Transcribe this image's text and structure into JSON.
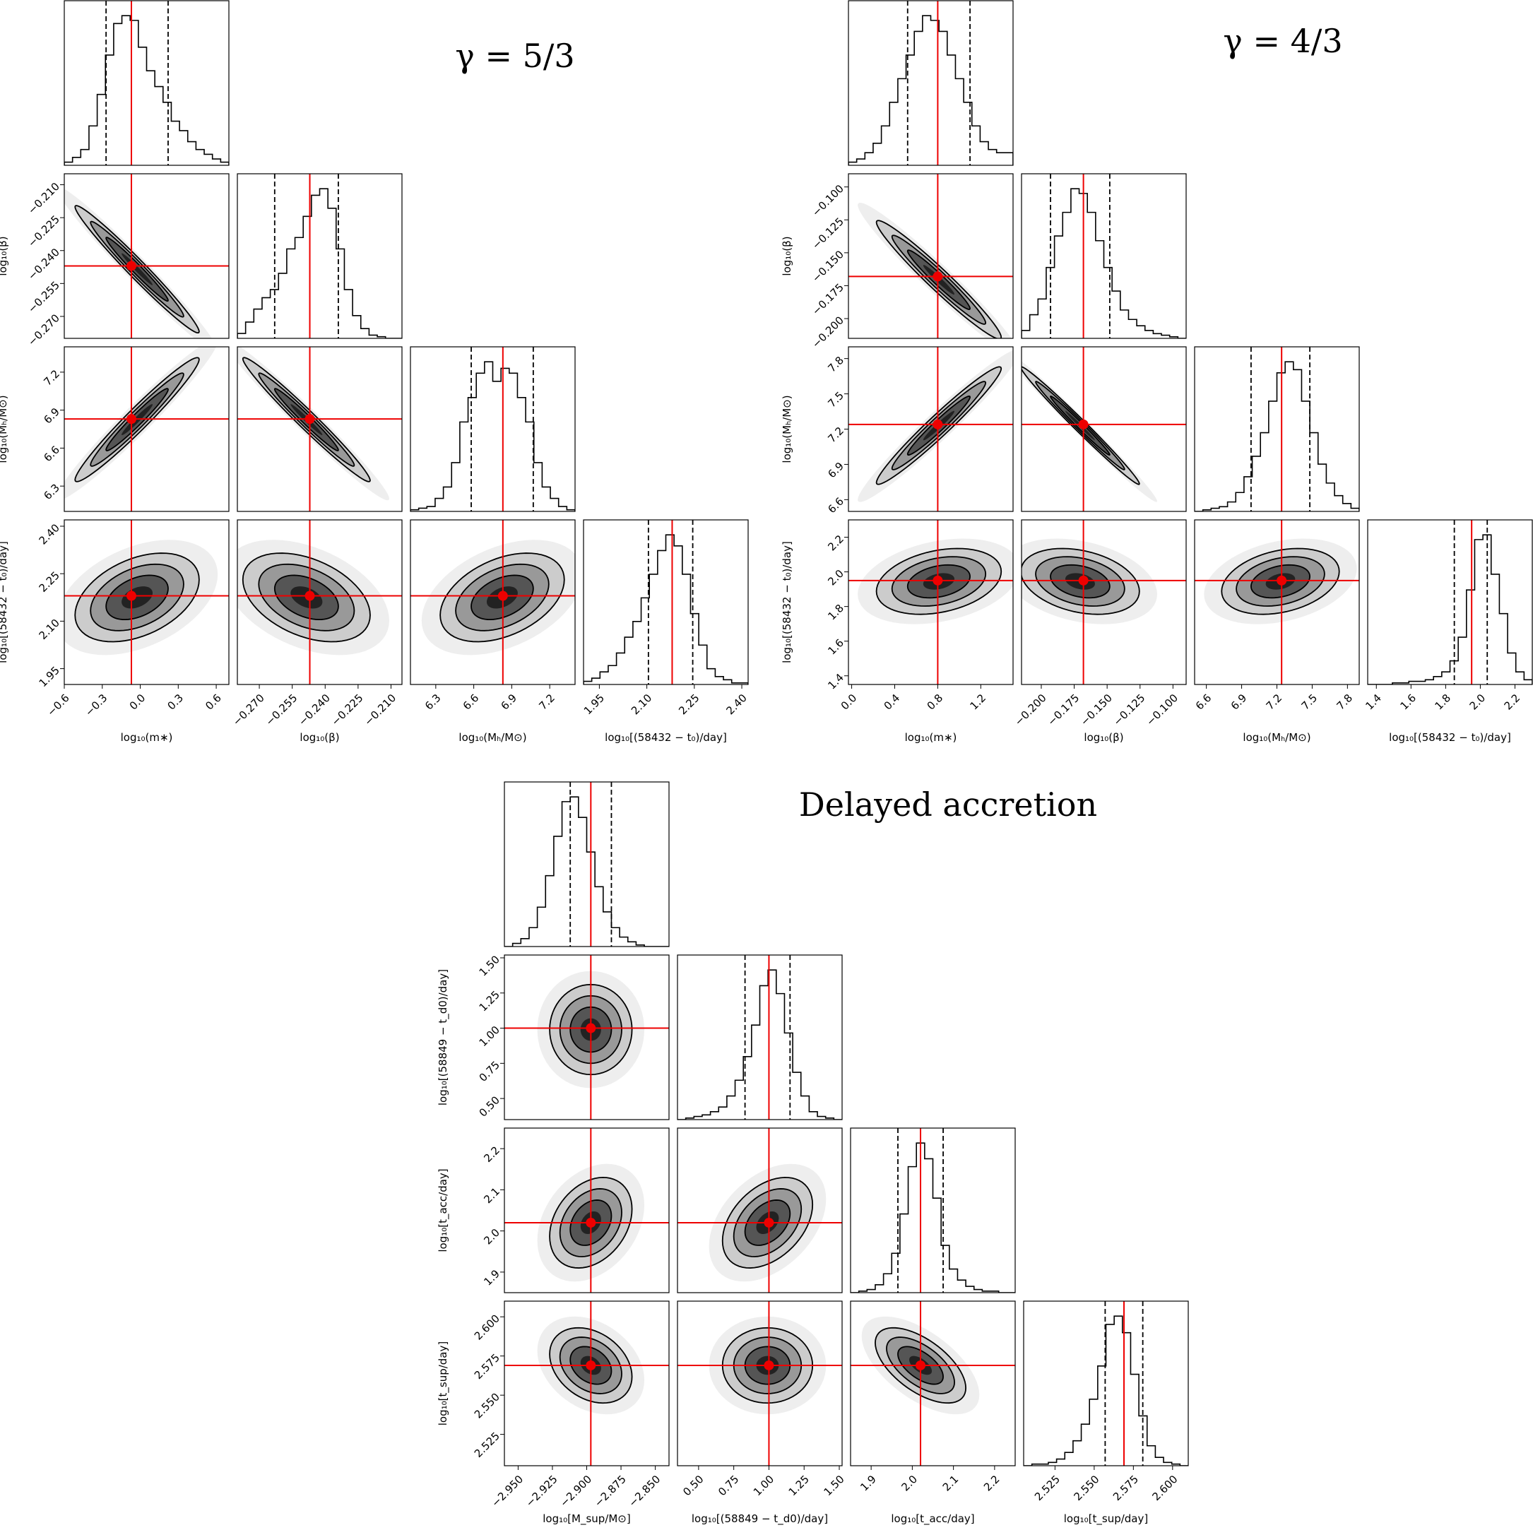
{
  "chart_data": [
    {
      "type": "corner",
      "title": "γ = 5/3",
      "params": [
        {
          "label": "log₁₀(m∗)",
          "xlim": [
            -0.6,
            0.7
          ],
          "ticks": [
            {
              "value": -0.6,
              "label": "−0.6"
            },
            {
              "value": -0.3,
              "label": "−0.3"
            },
            {
              "value": 0,
              "label": "0.0"
            },
            0.3,
            0.6
          ],
          "truth": -0.07,
          "quantiles": [
            -0.27,
            0.22
          ],
          "counts": [
            2,
            5,
            10,
            25,
            45,
            70,
            90,
            95,
            92,
            75,
            60,
            50,
            40,
            28,
            22,
            15,
            10,
            7,
            4,
            2
          ]
        },
        {
          "label": "log₁₀(β)",
          "xlim": [
            -0.28,
            -0.205
          ],
          "ticks": [
            {
              "value": -0.27,
              "label": "−0.270"
            },
            {
              "value": -0.255,
              "label": "−0.255"
            },
            {
              "value": -0.24,
              "label": "−0.240"
            },
            {
              "value": -0.225,
              "label": "−0.225"
            },
            {
              "value": -0.21,
              "label": "−0.210"
            }
          ],
          "truth": -0.247,
          "quantiles": [
            -0.263,
            -0.234
          ],
          "counts": [
            3,
            10,
            18,
            25,
            30,
            40,
            55,
            62,
            75,
            88,
            92,
            80,
            55,
            30,
            14,
            6,
            2,
            1,
            0,
            0
          ]
        },
        {
          "label": "log₁₀(Mₕ/M⊙)",
          "xlim": [
            6.1,
            7.4
          ],
          "ticks": [
            6.3,
            6.6,
            6.9,
            7.2
          ],
          "truth": 6.83,
          "quantiles": [
            6.58,
            7.07
          ],
          "counts": [
            1,
            2,
            3,
            8,
            15,
            30,
            55,
            70,
            85,
            92,
            80,
            88,
            85,
            70,
            55,
            30,
            15,
            8,
            3,
            1
          ]
        },
        {
          "label": "log₁₀[(58432 − t₀)/day]",
          "xlim": [
            1.9,
            2.42
          ],
          "ticks": [
            1.95,
            {
              "value": 2.1,
              "label": "2.10"
            },
            2.25,
            {
              "value": 2.4,
              "label": "2.40"
            }
          ],
          "truth": 2.18,
          "quantiles": [
            2.105,
            2.245
          ],
          "counts": [
            2,
            4,
            8,
            12,
            20,
            30,
            40,
            55,
            70,
            85,
            95,
            88,
            70,
            45,
            25,
            10,
            5,
            3,
            1,
            1
          ]
        }
      ],
      "correlations": [
        [
          1,
          -0.98,
          0.97,
          0.4
        ],
        [
          -0.98,
          1,
          -0.98,
          -0.4
        ],
        [
          0.97,
          -0.98,
          1,
          0.4
        ],
        [
          0.4,
          -0.4,
          0.4,
          1
        ]
      ]
    },
    {
      "type": "corner",
      "title": "γ  = 4/3",
      "params": [
        {
          "label": "log₁₀(m∗)",
          "xlim": [
            -0.03,
            1.5
          ],
          "ticks": [
            {
              "value": 0,
              "label": "0.0"
            },
            0.4,
            0.8,
            1.2
          ],
          "truth": 0.8,
          "quantiles": [
            0.52,
            1.1
          ],
          "counts": [
            2,
            4,
            8,
            14,
            25,
            40,
            55,
            70,
            85,
            95,
            92,
            85,
            70,
            55,
            40,
            25,
            15,
            10,
            8,
            8
          ]
        },
        {
          "label": "log₁₀(β)",
          "xlim": [
            -0.215,
            -0.09
          ],
          "ticks": [
            {
              "value": -0.2,
              "label": "−0.200"
            },
            {
              "value": -0.175,
              "label": "−0.175"
            },
            {
              "value": -0.15,
              "label": "−0.150"
            },
            {
              "value": -0.125,
              "label": "−0.125"
            },
            {
              "value": -0.1,
              "label": "−0.100"
            }
          ],
          "truth": -0.168,
          "quantiles": [
            -0.193,
            -0.148
          ],
          "counts": [
            5,
            15,
            25,
            45,
            65,
            80,
            95,
            92,
            80,
            62,
            45,
            30,
            18,
            12,
            8,
            5,
            3,
            2,
            1,
            0
          ]
        },
        {
          "label": "log₁₀(Mₕ/M⊙)",
          "xlim": [
            6.5,
            7.9
          ],
          "ticks": [
            6.6,
            6.9,
            7.2,
            7.5,
            7.8
          ],
          "truth": 7.24,
          "quantiles": [
            6.98,
            7.48
          ],
          "counts": [
            0,
            1,
            2,
            3,
            6,
            12,
            22,
            35,
            50,
            70,
            88,
            95,
            90,
            70,
            50,
            30,
            18,
            10,
            5,
            2
          ]
        },
        {
          "label": "log₁₀[(58432 − t₀)/day]",
          "xlim": [
            1.35,
            2.3
          ],
          "ticks": [
            1.4,
            1.6,
            1.8,
            {
              "value": 2,
              "label": "2.0"
            },
            2.2
          ],
          "truth": 1.95,
          "quantiles": [
            1.85,
            2.04
          ],
          "counts": [
            0,
            0,
            0,
            1,
            1,
            2,
            2,
            3,
            5,
            8,
            15,
            30,
            60,
            92,
            95,
            70,
            45,
            20,
            8,
            3
          ]
        }
      ],
      "correlations": [
        [
          1,
          -0.97,
          0.97,
          0.3
        ],
        [
          -0.97,
          1,
          -0.99,
          -0.3
        ],
        [
          0.97,
          -0.99,
          1,
          0.3
        ],
        [
          0.3,
          -0.3,
          0.3,
          1
        ]
      ]
    },
    {
      "type": "corner",
      "title": "Delayed accretion",
      "params": [
        {
          "label": "log₁₀[M_sup/M⊙]",
          "xlim": [
            -2.96,
            -2.84
          ],
          "ticks": [
            {
              "value": -2.95,
              "label": "−2.950"
            },
            {
              "value": -2.925,
              "label": "−2.925"
            },
            {
              "value": -2.9,
              "label": "−2.900"
            },
            {
              "value": -2.875,
              "label": "−2.875"
            },
            {
              "value": -2.85,
              "label": "−2.850"
            }
          ],
          "truth": -2.897,
          "quantiles": [
            -2.912,
            -2.882
          ],
          "counts": [
            0,
            2,
            5,
            12,
            25,
            45,
            70,
            92,
            95,
            82,
            60,
            38,
            22,
            12,
            6,
            3,
            1,
            0,
            0,
            0
          ]
        },
        {
          "label": "log₁₀[(58849 − t_d0)/day]",
          "xlim": [
            0.35,
            1.52
          ],
          "ticks": [
            {
              "value": 0.5,
              "label": "0.50"
            },
            0.75,
            {
              "value": 1,
              "label": "1.00"
            },
            1.25,
            {
              "value": 1.5,
              "label": "1.50"
            }
          ],
          "truth": 1.0,
          "quantiles": [
            0.83,
            1.15
          ],
          "counts": [
            0,
            1,
            2,
            3,
            5,
            8,
            15,
            25,
            40,
            60,
            85,
            95,
            80,
            55,
            30,
            15,
            5,
            2,
            1,
            0
          ]
        },
        {
          "label": "log₁₀[t_acc/day]",
          "xlim": [
            1.85,
            2.25
          ],
          "ticks": [
            1.9,
            {
              "value": 2,
              "label": "2.0"
            },
            2.1,
            2.2
          ],
          "truth": 2.02,
          "quantiles": [
            1.965,
            2.075
          ],
          "counts": [
            0,
            1,
            2,
            5,
            12,
            25,
            50,
            80,
            95,
            85,
            60,
            30,
            15,
            8,
            4,
            2,
            1,
            1,
            0,
            0
          ]
        },
        {
          "label": "log₁₀[t_sup/day]",
          "xlim": [
            2.505,
            2.61
          ],
          "ticks": [
            2.525,
            {
              "value": 2.55,
              "label": "2.550"
            },
            2.575,
            {
              "value": 2.6,
              "label": "2.600"
            }
          ],
          "truth": 2.569,
          "quantiles": [
            2.557,
            2.581
          ],
          "counts": [
            0,
            1,
            1,
            2,
            4,
            8,
            15,
            25,
            40,
            60,
            85,
            90,
            80,
            55,
            30,
            12,
            5,
            2,
            1,
            0
          ]
        }
      ],
      "correlations": [
        [
          1,
          0,
          0.3,
          -0.3
        ],
        [
          0,
          1,
          0.4,
          0
        ],
        [
          0.3,
          0.4,
          1,
          -0.6
        ],
        [
          -0.3,
          0,
          -0.6,
          1
        ]
      ]
    }
  ]
}
